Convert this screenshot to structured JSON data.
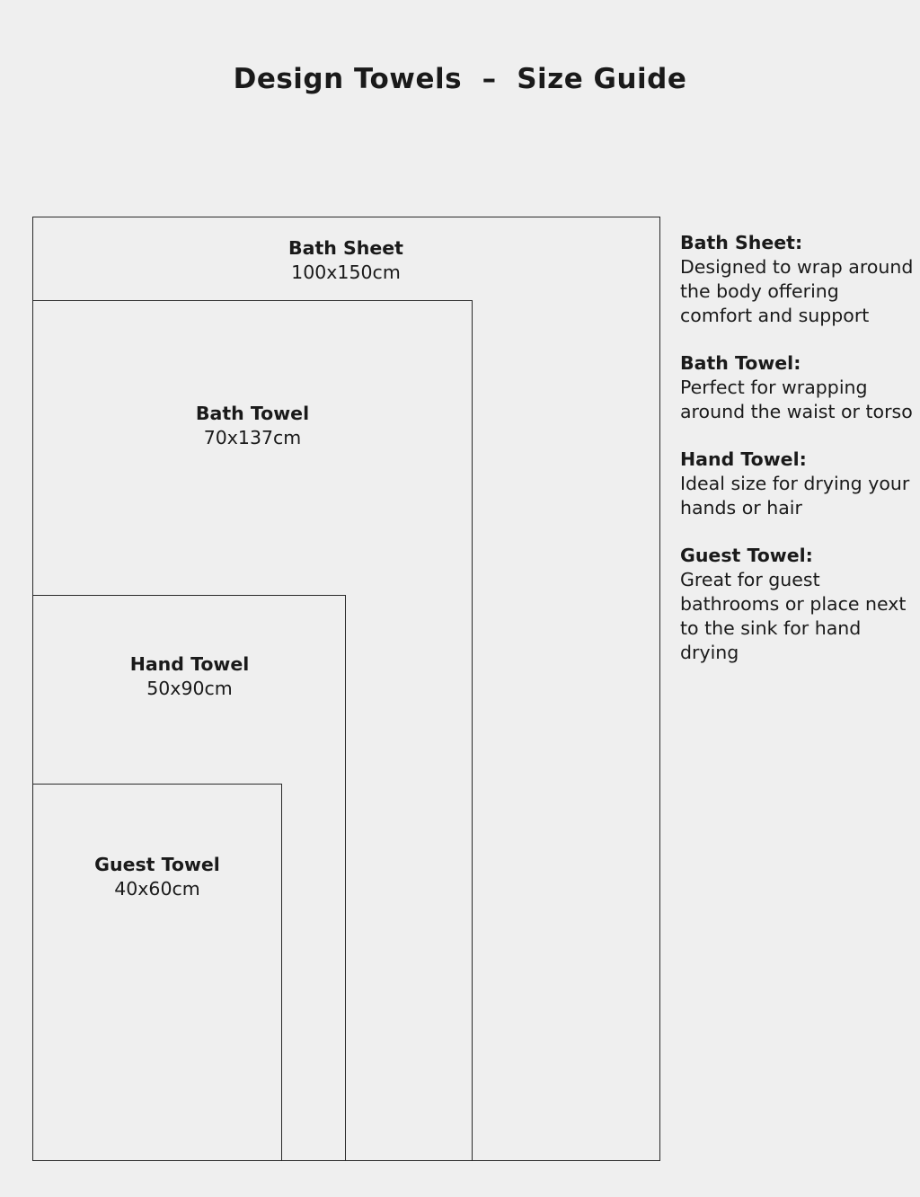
{
  "title": "Design Towels  –  Size Guide",
  "towels": [
    {
      "name": "Bath Sheet",
      "size": "100x150cm"
    },
    {
      "name": "Bath Towel",
      "size": "70x137cm"
    },
    {
      "name": "Hand Towel",
      "size": "50x90cm"
    },
    {
      "name": "Guest Towel",
      "size": "40x60cm"
    }
  ],
  "descriptions": [
    {
      "heading": "Bath Sheet:",
      "text": "Designed to wrap around the body offering comfort and support"
    },
    {
      "heading": "Bath Towel:",
      "text": "Perfect for wrapping around the waist or torso"
    },
    {
      "heading": "Hand Towel:",
      "text": "Ideal size for drying your hands or hair"
    },
    {
      "heading": "Guest Towel:",
      "text": "Great for guest bathrooms or place next to the sink for hand drying"
    }
  ]
}
